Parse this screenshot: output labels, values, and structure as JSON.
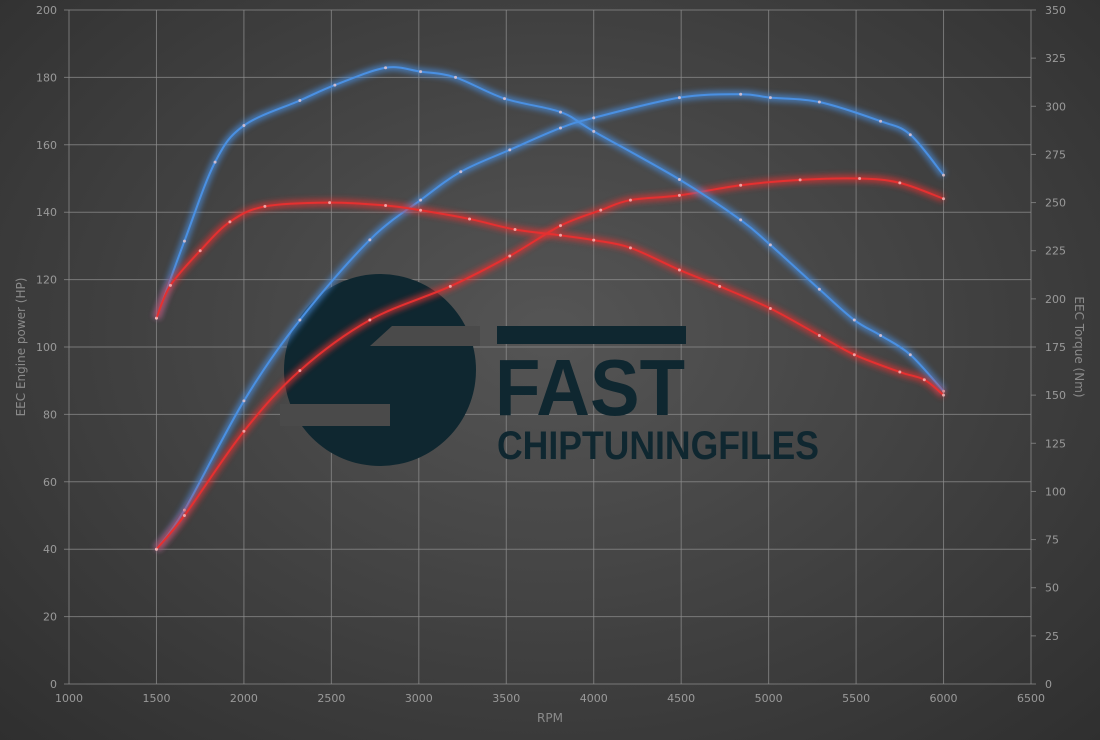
{
  "chart_data": {
    "type": "line",
    "title": "",
    "xlabel": "RPM",
    "ylabel_left": "EEC Engine power (HP)",
    "ylabel_right": "EEC Torque (Nm)",
    "xlim": [
      1000,
      6500
    ],
    "ylim_left": [
      0,
      200
    ],
    "ylim_right": [
      0,
      350
    ],
    "x_ticks": [
      "1000",
      "1500",
      "2000",
      "2500",
      "3000",
      "3500",
      "4000",
      "4500",
      "5000",
      "5500",
      "6000",
      "6500"
    ],
    "y_left_ticks": [
      "0",
      "20",
      "40",
      "60",
      "80",
      "100",
      "120",
      "140",
      "160",
      "180",
      "200"
    ],
    "y_right_ticks": [
      "0",
      "25",
      "50",
      "75",
      "100",
      "125",
      "150",
      "175",
      "200",
      "225",
      "250",
      "275",
      "300",
      "325",
      "350"
    ],
    "grid": true,
    "legend": "none",
    "series": [
      {
        "axis": "left",
        "color": "#4a90e2",
        "x": [
          1500,
          1660,
          2000,
          2320,
          2720,
          3010,
          3240,
          3520,
          3810,
          4000,
          4490,
          4840,
          5010,
          5290,
          5640,
          5810,
          6000
        ],
        "y": [
          40,
          51.6,
          84,
          108,
          131.8,
          143.6,
          152,
          158.5,
          165,
          168,
          174,
          175,
          174,
          172.7,
          167,
          163,
          151
        ]
      },
      {
        "axis": "left",
        "color": "#e53030",
        "x": [
          1500,
          1660,
          2000,
          2320,
          2720,
          3180,
          3520,
          3810,
          4040,
          4210,
          4490,
          4840,
          5180,
          5520,
          5750,
          6000
        ],
        "y": [
          40,
          50,
          75,
          93,
          108,
          118,
          127,
          136,
          140.6,
          143.6,
          145,
          148,
          149.6,
          150,
          148.7,
          144
        ]
      },
      {
        "axis": "right",
        "color": "#4a90e2",
        "x": [
          1500,
          1660,
          1835,
          2000,
          2320,
          2520,
          2810,
          3010,
          3210,
          3490,
          3810,
          4000,
          4490,
          4840,
          5010,
          5290,
          5490,
          5640,
          5810,
          6000
        ],
        "y": [
          190,
          230,
          271,
          290,
          303,
          311,
          320,
          318,
          315,
          304,
          297,
          287,
          262,
          241,
          228,
          205,
          189,
          181,
          171,
          152
        ]
      },
      {
        "axis": "right",
        "color": "#e53030",
        "x": [
          1500,
          1580,
          1750,
          1920,
          2120,
          2490,
          2810,
          3010,
          3290,
          3550,
          3810,
          4000,
          4210,
          4490,
          4720,
          5010,
          5290,
          5490,
          5750,
          5890,
          6000
        ],
        "y": [
          190,
          207,
          225,
          240,
          248,
          250,
          248.5,
          246,
          241.5,
          236,
          233,
          230.5,
          226.5,
          215,
          206.5,
          195,
          181,
          171,
          162,
          158,
          150
        ]
      }
    ]
  },
  "logo": {
    "word1": "FAST",
    "word2": "CHIPTUNINGFILES",
    "color": "#0f2730"
  }
}
